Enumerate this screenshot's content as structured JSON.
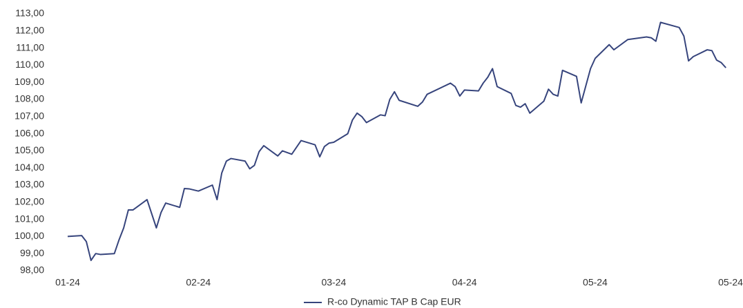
{
  "chart_data": {
    "type": "line",
    "x": [
      0,
      3,
      4,
      5,
      6,
      7,
      10,
      11,
      12,
      13,
      14,
      17,
      19,
      20,
      21,
      24,
      25,
      26,
      28,
      31,
      32,
      33,
      34,
      35,
      38,
      39,
      40,
      41,
      42,
      45,
      46,
      48,
      50,
      53,
      54,
      55,
      56,
      57,
      60,
      61,
      62,
      63,
      64,
      67,
      68,
      69,
      70,
      71,
      75,
      76,
      77,
      82,
      83,
      84,
      85,
      88,
      89,
      90,
      91,
      92,
      95,
      96,
      97,
      98,
      99,
      102,
      103,
      104,
      105,
      106,
      109,
      110,
      112,
      113,
      116,
      117,
      120,
      124,
      125,
      126,
      127,
      131,
      132,
      133,
      134,
      137,
      138,
      139,
      140,
      141
    ],
    "series": [
      {
        "name": "R-co Dynamic TAP B Cap EUR",
        "color": "#36447c",
        "values": [
          100.0,
          100.05,
          99.7,
          98.6,
          99.0,
          98.95,
          99.0,
          99.8,
          100.5,
          101.55,
          101.55,
          102.15,
          100.5,
          101.4,
          101.95,
          101.7,
          102.8,
          102.78,
          102.65,
          103.0,
          102.15,
          103.7,
          104.4,
          104.55,
          104.4,
          103.95,
          104.15,
          104.95,
          105.3,
          104.7,
          105.0,
          104.8,
          105.6,
          105.35,
          104.65,
          105.25,
          105.45,
          105.5,
          106.0,
          106.8,
          107.2,
          107.0,
          106.65,
          107.1,
          107.05,
          108.0,
          108.45,
          107.95,
          107.6,
          107.85,
          108.3,
          108.95,
          108.75,
          108.2,
          108.55,
          108.5,
          108.95,
          109.3,
          109.8,
          108.75,
          108.35,
          107.65,
          107.55,
          107.75,
          107.2,
          107.9,
          108.6,
          108.3,
          108.2,
          109.7,
          109.35,
          107.8,
          109.8,
          110.4,
          111.2,
          110.9,
          111.5,
          111.65,
          111.6,
          111.4,
          112.5,
          112.2,
          111.7,
          110.25,
          110.5,
          110.9,
          110.85,
          110.3,
          110.15,
          109.85
        ]
      }
    ],
    "xlim": [
      0,
      142
    ],
    "xticks": [
      {
        "value": 0,
        "label": "01-24"
      },
      {
        "value": 28,
        "label": "02-24"
      },
      {
        "value": 57,
        "label": "03-24"
      },
      {
        "value": 85,
        "label": "04-24"
      },
      {
        "value": 113,
        "label": "05-24"
      },
      {
        "value": 142,
        "label": "05-24"
      }
    ],
    "ylim": [
      98,
      113
    ],
    "yticks": [
      {
        "value": 98,
        "label": "98,00"
      },
      {
        "value": 99,
        "label": "99,00"
      },
      {
        "value": 100,
        "label": "100,00"
      },
      {
        "value": 101,
        "label": "101,00"
      },
      {
        "value": 102,
        "label": "102,00"
      },
      {
        "value": 103,
        "label": "103,00"
      },
      {
        "value": 104,
        "label": "104,00"
      },
      {
        "value": 105,
        "label": "105,00"
      },
      {
        "value": 106,
        "label": "106,00"
      },
      {
        "value": 107,
        "label": "107,00"
      },
      {
        "value": 108,
        "label": "108,00"
      },
      {
        "value": 109,
        "label": "109,00"
      },
      {
        "value": 110,
        "label": "110,00"
      },
      {
        "value": 111,
        "label": "111,00"
      },
      {
        "value": 112,
        "label": "112,00"
      },
      {
        "value": 113,
        "label": "113,00"
      }
    ],
    "grid": false,
    "legend": "bottom"
  }
}
